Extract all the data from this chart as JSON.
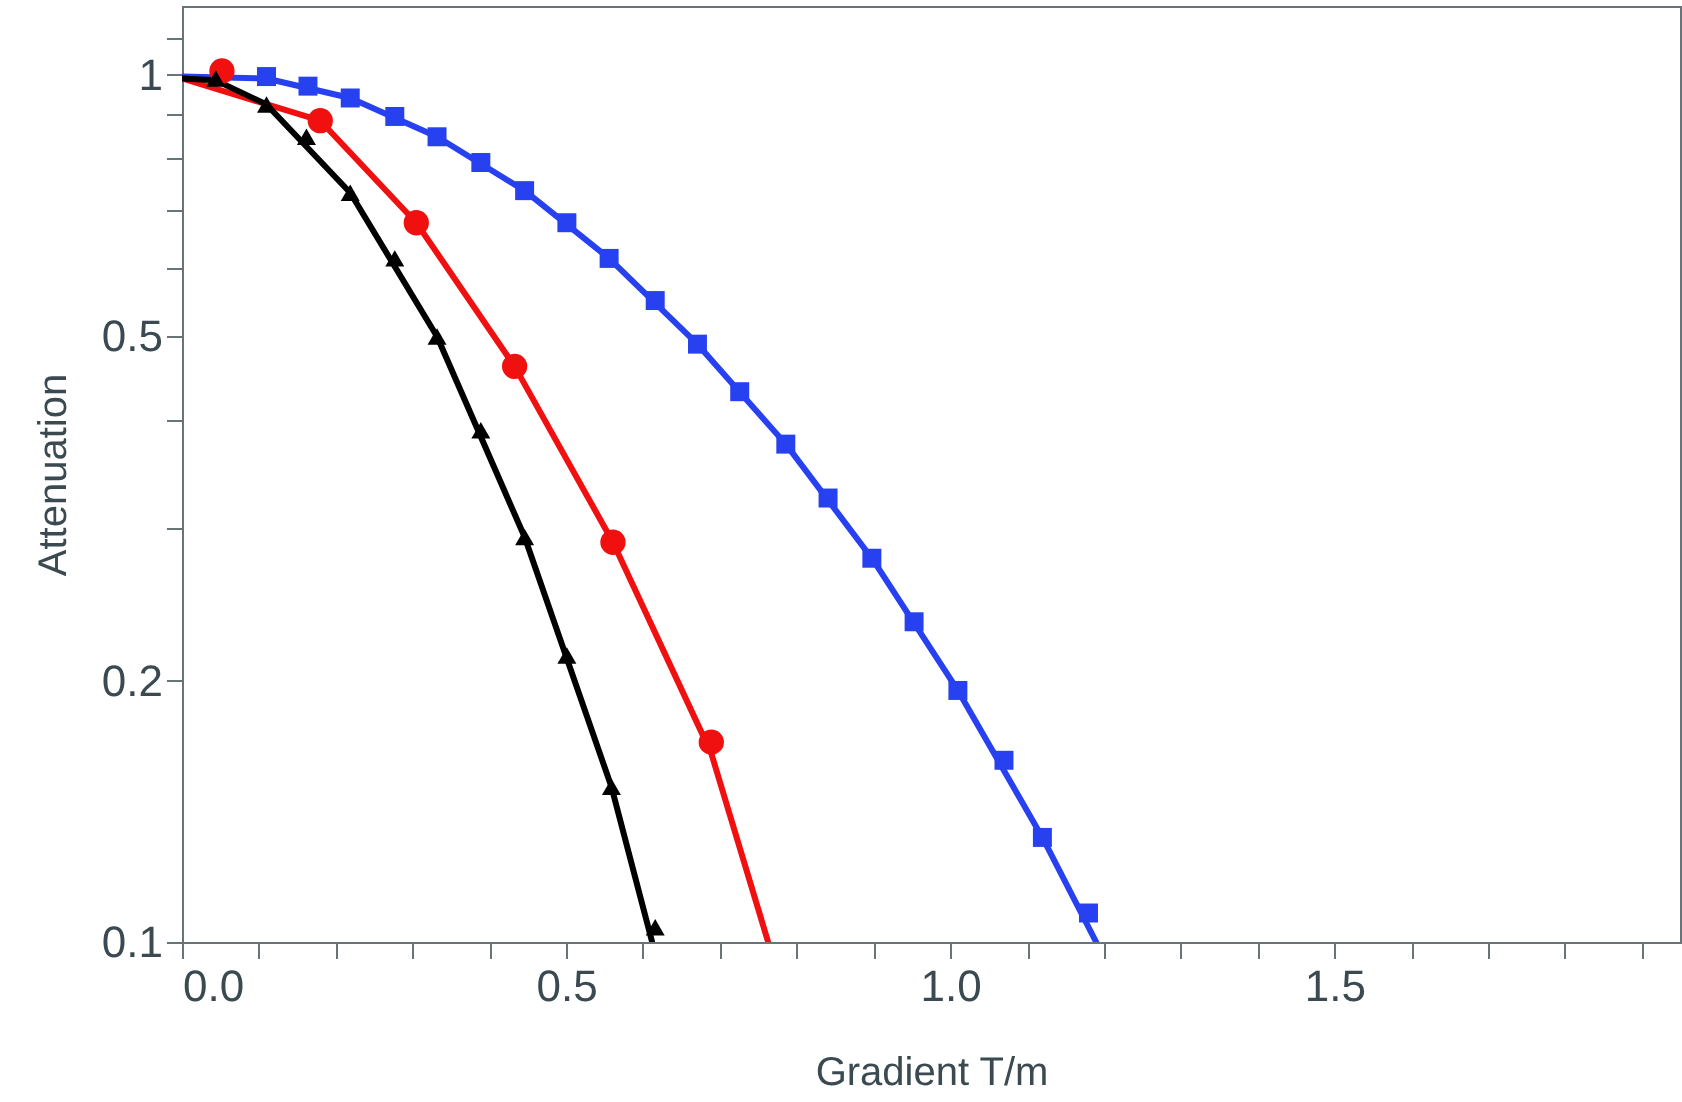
{
  "chart_data": {
    "type": "scatter",
    "xlabel": "Gradient T/m",
    "ylabel": "Attenuation",
    "log": "y",
    "grid": false,
    "xlim": [
      0,
      1.95
    ],
    "xticks": [
      {
        "value": 0,
        "label": "0.0"
      },
      {
        "value": 0.1,
        "label": null
      },
      {
        "value": 0.2,
        "label": null
      },
      {
        "value": 0.3,
        "label": null
      },
      {
        "value": 0.4,
        "label": null
      },
      {
        "value": 0.5,
        "label": "0.5"
      },
      {
        "value": 0.6,
        "label": null
      },
      {
        "value": 0.7,
        "label": null
      },
      {
        "value": 0.8,
        "label": null
      },
      {
        "value": 0.9,
        "label": null
      },
      {
        "value": 1,
        "label": "1.0"
      },
      {
        "value": 1.1,
        "label": null
      },
      {
        "value": 1.2,
        "label": null
      },
      {
        "value": 1.3,
        "label": null
      },
      {
        "value": 1.4,
        "label": null
      },
      {
        "value": 1.5,
        "label": "1.5"
      },
      {
        "value": 1.6,
        "label": null
      },
      {
        "value": 1.7,
        "label": null
      },
      {
        "value": 1.8,
        "label": null
      },
      {
        "value": 1.9,
        "label": null
      }
    ],
    "ylim": [
      0.1,
      1.2
    ],
    "yticks": [
      0.1,
      0.2,
      {
        "value": 0.3,
        "label": null
      },
      {
        "value": 0.4,
        "label": null
      },
      0.5,
      {
        "value": 0.6,
        "label": null
      },
      {
        "value": 0.7,
        "label": null
      },
      {
        "value": 0.8,
        "label": null
      },
      {
        "value": 0.9,
        "label": null
      },
      1,
      {
        "value": 1.1,
        "label": null
      }
    ],
    "series": [
      {
        "type": "line",
        "color": "#2741f0",
        "x": [
          0,
          0.11,
          0.219,
          0.332,
          0.446,
          0.556,
          0.671,
          0.786,
          0.898,
          1.01,
          1.12,
          1.19
        ],
        "values": [
          0.995,
          0.99,
          0.94,
          0.848,
          0.735,
          0.614,
          0.489,
          0.375,
          0.277,
          0.195,
          0.132,
          0.1
        ]
      },
      {
        "type": "line",
        "color": "#f01010",
        "x": [
          0,
          0.18,
          0.305,
          0.433,
          0.561,
          0.689,
          0.763
        ],
        "values": [
          0.99,
          0.885,
          0.675,
          0.461,
          0.289,
          0.165,
          0.1
        ]
      },
      {
        "type": "line",
        "color": "#000000",
        "x": [
          0,
          0.044,
          0.11,
          0.219,
          0.332,
          0.446,
          0.559,
          0.612
        ],
        "values": [
          0.99,
          0.985,
          0.924,
          0.731,
          0.499,
          0.293,
          0.151,
          0.1
        ]
      },
      {
        "marker": "square",
        "color": "#2741f0",
        "x": [
          0.11,
          0.164,
          0.219,
          0.277,
          0.332,
          0.389,
          0.446,
          0.501,
          0.556,
          0.616,
          0.671,
          0.726,
          0.786,
          0.841,
          0.898,
          0.953,
          1.01,
          1.07,
          1.12,
          1.18
        ],
        "values": [
          0.995,
          0.97,
          0.94,
          0.895,
          0.848,
          0.792,
          0.735,
          0.675,
          0.614,
          0.549,
          0.489,
          0.431,
          0.375,
          0.325,
          0.277,
          0.234,
          0.195,
          0.162,
          0.132,
          0.108
        ]
      },
      {
        "marker": "circle",
        "color": "#f01010",
        "x": [
          0.052,
          0.18,
          0.305,
          0.433,
          0.561,
          0.689
        ],
        "values": [
          1.01,
          0.885,
          0.675,
          0.461,
          0.289,
          0.17
        ]
      },
      {
        "marker": "triangle",
        "color": "#000000",
        "x": [
          0.044,
          0.11,
          0.162,
          0.219,
          0.277,
          0.332,
          0.389,
          0.446,
          0.501,
          0.559,
          0.616
        ],
        "values": [
          0.99,
          0.924,
          0.848,
          0.731,
          0.614,
          0.499,
          0.389,
          0.293,
          0.214,
          0.151,
          0.104
        ]
      }
    ]
  }
}
